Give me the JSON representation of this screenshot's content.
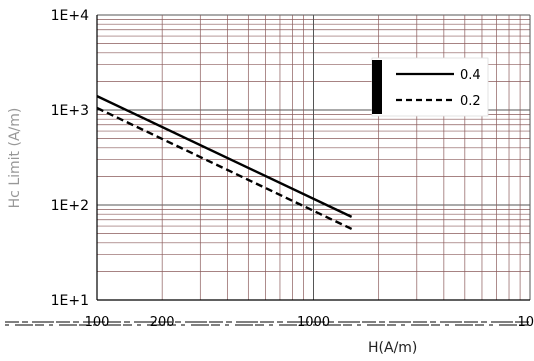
{
  "chart_data": {
    "type": "line",
    "title": "",
    "xlabel": "H(A/m)",
    "ylabel": "Hc Limit (A/m)",
    "x_scale": "log",
    "y_scale": "log",
    "xlim": [
      100,
      10000
    ],
    "ylim": [
      10,
      10000
    ],
    "x_ticks": [
      "100",
      "200",
      "1000",
      "10"
    ],
    "y_ticks": [
      "1E+1",
      "1E+2",
      "1E+3",
      "1E+4"
    ],
    "grid": true,
    "legend_position": "top-right",
    "series": [
      {
        "name": "0.4",
        "style": "solid",
        "x": [
          100,
          1500
        ],
        "y": [
          1400,
          75
        ]
      },
      {
        "name": "0.2",
        "style": "dashed",
        "x": [
          100,
          1500
        ],
        "y": [
          1050,
          56
        ]
      }
    ],
    "colors": {
      "grid": "#8a5a5a",
      "line": "#000000",
      "axis": "#000000"
    }
  }
}
